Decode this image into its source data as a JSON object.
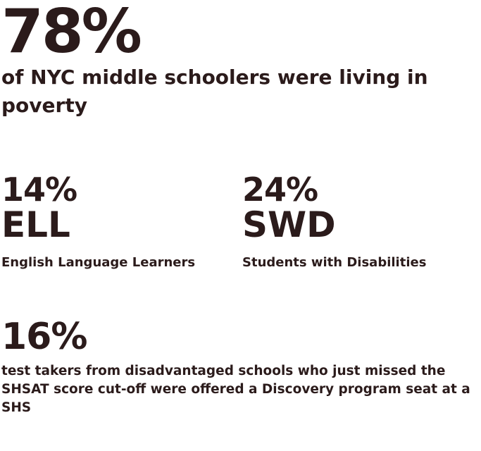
{
  "poverty": {
    "figure": "78%",
    "description": "of NYC middle schoolers were living in poverty"
  },
  "ell": {
    "figure": "14%",
    "code": "ELL",
    "description": "English Language Learners"
  },
  "swd": {
    "figure": "24%",
    "code": "SWD",
    "description": "Students with Disabilities"
  },
  "shsat": {
    "figure": "16%",
    "description": "test takers from disadvantaged schools who just missed the SHSAT score cut-off were offered a Discovery program seat at a SHS"
  },
  "colors": {
    "text": "#2b1b1b",
    "background": "#ffffff"
  }
}
